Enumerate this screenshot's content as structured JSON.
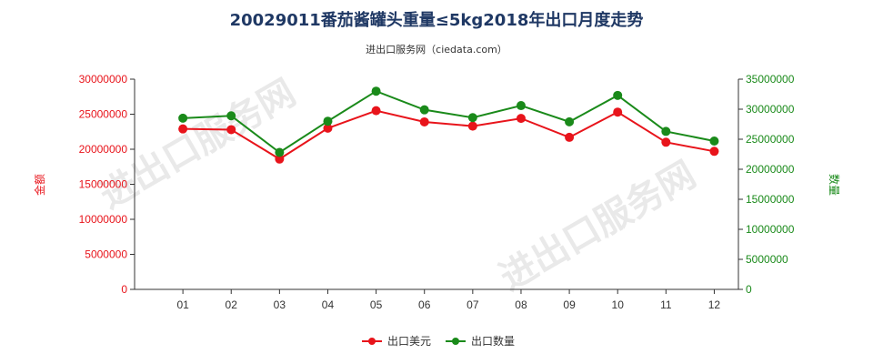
{
  "chart_data": {
    "type": "line",
    "title": "20029011番茄酱罐头重量≤5kg2018年出口月度走势",
    "subtitle": "进出口服务网（ciedata.com）",
    "categories": [
      "01",
      "02",
      "03",
      "04",
      "05",
      "06",
      "07",
      "08",
      "09",
      "10",
      "11",
      "12"
    ],
    "y_left": {
      "label": "金额",
      "range": [
        0,
        30000000
      ],
      "ticks": [
        0,
        5000000,
        10000000,
        15000000,
        20000000,
        25000000,
        30000000
      ],
      "color": "#e8141b"
    },
    "y_right": {
      "label": "数量",
      "range": [
        0,
        35000000
      ],
      "ticks": [
        0,
        5000000,
        10000000,
        15000000,
        20000000,
        25000000,
        30000000,
        35000000
      ],
      "color": "#1a8a1a"
    },
    "series": [
      {
        "name": "出口美元",
        "axis": "left",
        "color": "#e8141b",
        "values": [
          22900000,
          22800000,
          18600000,
          23000000,
          25500000,
          23900000,
          23300000,
          24400000,
          21700000,
          25300000,
          21000000,
          19700000
        ]
      },
      {
        "name": "出口数量",
        "axis": "right",
        "color": "#1a8a1a",
        "values": [
          28500000,
          28900000,
          22800000,
          28000000,
          33000000,
          29900000,
          28600000,
          30600000,
          27900000,
          32300000,
          26300000,
          24700000
        ]
      }
    ],
    "legend_position": "bottom-center",
    "grid": false
  },
  "watermark": "进出口服务网"
}
